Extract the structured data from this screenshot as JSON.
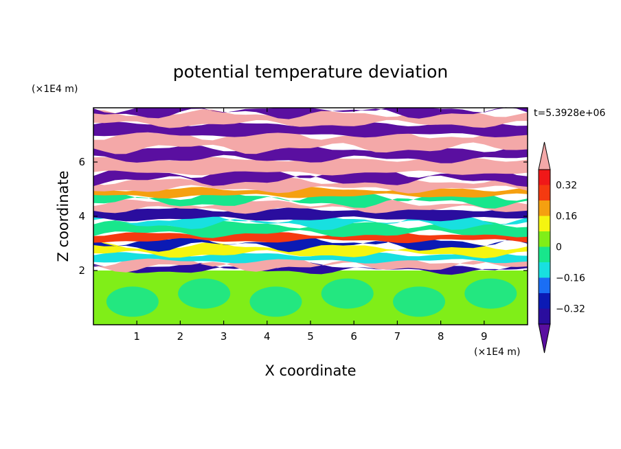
{
  "chart_data": {
    "type": "heatmap",
    "title": "potential temperature deviation",
    "xlabel": "X coordinate",
    "ylabel": "Z coordinate",
    "x_unit": "(×1E4 m)",
    "y_unit": "(×1E4 m)",
    "time_label": "t=5.3928e+06",
    "xlim": [
      0,
      10
    ],
    "ylim": [
      0,
      8
    ],
    "x_ticks": [
      "1",
      "2",
      "3",
      "4",
      "5",
      "6",
      "7",
      "8",
      "9"
    ],
    "y_ticks": [
      "2",
      "4",
      "6"
    ],
    "colorbar": {
      "labels": [
        "0.32",
        "0.16",
        "0",
        "−0.16",
        "−0.32"
      ],
      "levels": [
        -0.4,
        -0.32,
        -0.24,
        -0.16,
        -0.08,
        0,
        0.08,
        0.16,
        0.24,
        0.32,
        0.4
      ],
      "colors": [
        "#5a0fa0",
        "#2a0d9e",
        "#0b1ab4",
        "#1a6ef5",
        "#18e0e0",
        "#18e68c",
        "#80ee18",
        "#f5f510",
        "#f5a010",
        "#f53a10",
        "#f01818",
        "#f4a8a8"
      ],
      "extend": "both"
    },
    "bands": [
      {
        "z0": 0.0,
        "z1": 2.0,
        "level": 6
      },
      {
        "z0": 2.0,
        "z1": 2.15,
        "level": 1
      },
      {
        "z0": 2.15,
        "z1": 2.35,
        "level": 11
      },
      {
        "z0": 2.35,
        "z1": 2.6,
        "level": 4
      },
      {
        "z0": 2.6,
        "z1": 2.9,
        "level": 7
      },
      {
        "z0": 2.9,
        "z1": 3.1,
        "level": 2
      },
      {
        "z0": 3.1,
        "z1": 3.35,
        "level": 9
      },
      {
        "z0": 3.35,
        "z1": 3.7,
        "level": 5
      },
      {
        "z0": 3.7,
        "z1": 3.9,
        "level": 4
      },
      {
        "z0": 3.9,
        "z1": 4.25,
        "level": 1
      },
      {
        "z0": 4.25,
        "z1": 4.5,
        "level": 11
      },
      {
        "z0": 4.5,
        "z1": 4.75,
        "level": 5
      },
      {
        "z0": 4.75,
        "z1": 5.0,
        "level": 8
      },
      {
        "z0": 5.0,
        "z1": 5.3,
        "level": 11
      },
      {
        "z0": 5.3,
        "z1": 5.6,
        "level": 0
      },
      {
        "z0": 5.6,
        "z1": 6.1,
        "level": 11
      },
      {
        "z0": 6.1,
        "z1": 6.5,
        "level": 0
      },
      {
        "z0": 6.5,
        "z1": 7.0,
        "level": 11
      },
      {
        "z0": 7.0,
        "z1": 7.4,
        "level": 0
      },
      {
        "z0": 7.4,
        "z1": 7.8,
        "level": 11
      },
      {
        "z0": 7.8,
        "z1": 8.0,
        "level": 0
      }
    ]
  }
}
